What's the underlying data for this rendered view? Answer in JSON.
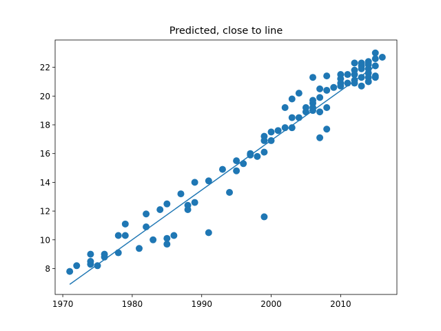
{
  "chart_data": {
    "type": "scatter",
    "title": "Predicted, close to line",
    "xlabel": "",
    "ylabel": "",
    "xlim": [
      1968.9,
      2018.1
    ],
    "ylim": [
      6.2,
      23.9
    ],
    "xticks": [
      1970,
      1980,
      1990,
      2000,
      2010
    ],
    "yticks": [
      8,
      10,
      12,
      14,
      16,
      18,
      20,
      22
    ],
    "grid": false,
    "colors": {
      "points": "#1f77b4",
      "line": "#1f77b4"
    },
    "fit_line": {
      "x": [
        1971,
        2015
      ],
      "y": [
        6.9,
        22.1
      ]
    },
    "points": [
      [
        1971,
        7.8
      ],
      [
        1972,
        8.2
      ],
      [
        1974,
        9.0
      ],
      [
        1974,
        8.5
      ],
      [
        1974,
        8.3
      ],
      [
        1975,
        8.2
      ],
      [
        1976,
        9.0
      ],
      [
        1976,
        8.8
      ],
      [
        1978,
        10.3
      ],
      [
        1978,
        9.1
      ],
      [
        1979,
        11.1
      ],
      [
        1979,
        10.3
      ],
      [
        1981,
        9.4
      ],
      [
        1982,
        11.8
      ],
      [
        1982,
        10.9
      ],
      [
        1983,
        10.0
      ],
      [
        1984,
        12.1
      ],
      [
        1985,
        12.5
      ],
      [
        1985,
        10.1
      ],
      [
        1985,
        9.7
      ],
      [
        1986,
        10.3
      ],
      [
        1987,
        13.2
      ],
      [
        1988,
        12.4
      ],
      [
        1988,
        12.1
      ],
      [
        1989,
        14.0
      ],
      [
        1989,
        12.6
      ],
      [
        1991,
        14.1
      ],
      [
        1991,
        10.5
      ],
      [
        1993,
        14.9
      ],
      [
        1994,
        13.3
      ],
      [
        1995,
        15.5
      ],
      [
        1995,
        14.8
      ],
      [
        1996,
        15.3
      ],
      [
        1997,
        16.0
      ],
      [
        1997,
        15.9
      ],
      [
        1998,
        15.8
      ],
      [
        1999,
        17.2
      ],
      [
        1999,
        16.9
      ],
      [
        1999,
        16.1
      ],
      [
        1999,
        11.6
      ],
      [
        2000,
        17.5
      ],
      [
        2000,
        16.9
      ],
      [
        2001,
        17.6
      ],
      [
        2002,
        19.2
      ],
      [
        2002,
        17.8
      ],
      [
        2003,
        19.8
      ],
      [
        2003,
        18.5
      ],
      [
        2003,
        17.8
      ],
      [
        2004,
        20.2
      ],
      [
        2004,
        18.5
      ],
      [
        2005,
        19.2
      ],
      [
        2005,
        18.9
      ],
      [
        2006,
        21.3
      ],
      [
        2006,
        19.7
      ],
      [
        2006,
        19.5
      ],
      [
        2006,
        19.2
      ],
      [
        2006,
        19.0
      ],
      [
        2007,
        20.5
      ],
      [
        2007,
        19.9
      ],
      [
        2007,
        18.9
      ],
      [
        2007,
        17.1
      ],
      [
        2008,
        21.4
      ],
      [
        2008,
        20.4
      ],
      [
        2008,
        19.2
      ],
      [
        2008,
        17.7
      ],
      [
        2009,
        20.6
      ],
      [
        2010,
        21.5
      ],
      [
        2010,
        21.2
      ],
      [
        2010,
        20.9
      ],
      [
        2010,
        20.7
      ],
      [
        2011,
        21.5
      ],
      [
        2011,
        20.9
      ],
      [
        2012,
        22.3
      ],
      [
        2012,
        21.8
      ],
      [
        2012,
        21.5
      ],
      [
        2012,
        21.1
      ],
      [
        2012,
        20.9
      ],
      [
        2013,
        22.3
      ],
      [
        2013,
        22.1
      ],
      [
        2013,
        21.9
      ],
      [
        2013,
        21.3
      ],
      [
        2013,
        20.7
      ],
      [
        2014,
        22.4
      ],
      [
        2014,
        22.2
      ],
      [
        2014,
        21.9
      ],
      [
        2014,
        21.6
      ],
      [
        2014,
        21.3
      ],
      [
        2014,
        21.0
      ],
      [
        2015,
        23.0
      ],
      [
        2015,
        22.6
      ],
      [
        2015,
        22.1
      ],
      [
        2015,
        21.4
      ],
      [
        2015,
        21.3
      ],
      [
        2016,
        22.7
      ]
    ]
  }
}
